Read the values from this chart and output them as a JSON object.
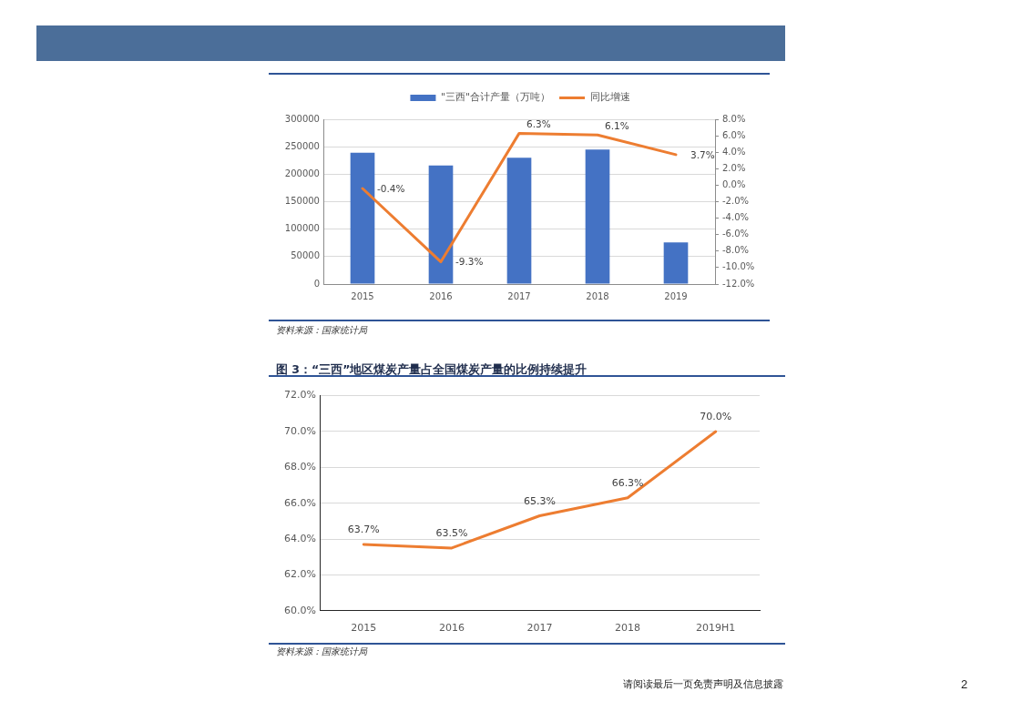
{
  "chart_data": [
    {
      "type": "bar",
      "categories": [
        "2015",
        "2016",
        "2017",
        "2018",
        "2019"
      ],
      "series": [
        {
          "name": "\"三西\"合计产量（万吨）",
          "type": "bar",
          "color": "#4472c4",
          "values": [
            239000,
            216000,
            230000,
            245000,
            76000
          ]
        },
        {
          "name": "同比增速",
          "type": "line",
          "axis": "y2",
          "color": "#ed7d31",
          "values": [
            -0.4,
            -9.3,
            6.3,
            6.1,
            3.7
          ],
          "value_labels": [
            "-0.4%",
            "-9.3%",
            "6.3%",
            "6.1%",
            "3.7%"
          ]
        }
      ],
      "ylim": [
        0,
        300000
      ],
      "yticks": [
        0,
        50000,
        100000,
        150000,
        200000,
        250000,
        300000
      ],
      "y2lim": [
        -12,
        8
      ],
      "y2ticks": [
        {
          "value": -12,
          "label": "-12.0%"
        },
        {
          "value": -10,
          "label": "-10.0%"
        },
        {
          "value": -8,
          "label": "-8.0%"
        },
        {
          "value": -6,
          "label": "-6.0%"
        },
        {
          "value": -4,
          "label": "-4.0%"
        },
        {
          "value": -2,
          "label": "-2.0%"
        },
        {
          "value": 0,
          "label": "0.0%"
        },
        {
          "value": 2,
          "label": "2.0%"
        },
        {
          "value": 4,
          "label": "4.0%"
        },
        {
          "value": 6,
          "label": "6.0%"
        },
        {
          "value": 8,
          "label": "8.0%"
        }
      ],
      "grid": "y",
      "legend": "top",
      "annotations": [
        "资料来源：国家统计局"
      ]
    },
    {
      "type": "line",
      "title": "图 3：“三西”地区煤炭产量占全国煤炭产量的比例持续提升",
      "categories": [
        "2015",
        "2016",
        "2017",
        "2018",
        "2019H1"
      ],
      "values": [
        63.7,
        63.5,
        65.3,
        66.3,
        70.0
      ],
      "value_labels": [
        "63.7%",
        "63.5%",
        "65.3%",
        "66.3%",
        "70.0%"
      ],
      "color": "#ed7d31",
      "ylim": [
        60,
        72
      ],
      "yticks": [
        {
          "value": 60,
          "label": "60.0%"
        },
        {
          "value": 62,
          "label": "62.0%"
        },
        {
          "value": 64,
          "label": "64.0%"
        },
        {
          "value": 66,
          "label": "66.0%"
        },
        {
          "value": 68,
          "label": "68.0%"
        },
        {
          "value": 70,
          "label": "70.0%"
        },
        {
          "value": 72,
          "label": "72.0%"
        }
      ],
      "grid": "y",
      "annotations": [
        "资料来源：国家统计局",
        "请阅读最后一页免责声明及信息披露",
        "2"
      ]
    }
  ]
}
